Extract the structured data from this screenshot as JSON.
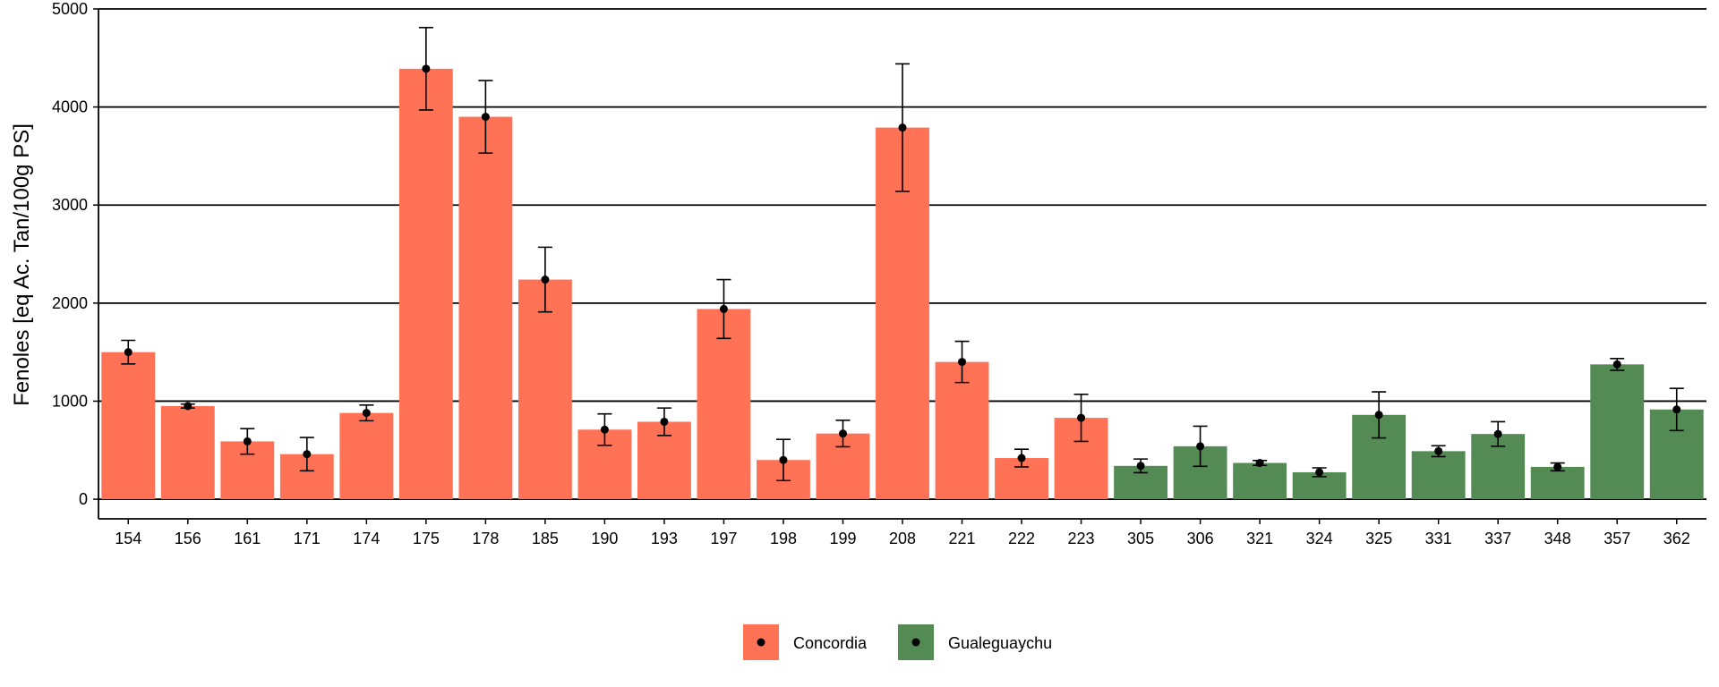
{
  "chart_data": {
    "type": "bar",
    "title": "",
    "xlabel": "",
    "ylabel": "Fenoles [eq Ac. Tan/100g PS]",
    "ylim": [
      -200,
      5000
    ],
    "yticks": [
      0,
      1000,
      2000,
      3000,
      4000,
      5000
    ],
    "grid": "horizontal major lines",
    "legend_position": "bottom",
    "error_bars": true,
    "categories": [
      "154",
      "156",
      "161",
      "171",
      "174",
      "175",
      "178",
      "185",
      "190",
      "193",
      "197",
      "198",
      "199",
      "208",
      "221",
      "222",
      "223",
      "305",
      "306",
      "321",
      "324",
      "325",
      "331",
      "337",
      "348",
      "357",
      "362"
    ],
    "values": [
      1500,
      950,
      590,
      460,
      880,
      4390,
      3900,
      2240,
      710,
      790,
      1940,
      400,
      670,
      3790,
      1400,
      420,
      830,
      340,
      540,
      370,
      275,
      860,
      490,
      665,
      330,
      1375,
      915
    ],
    "errors": [
      120,
      20,
      130,
      170,
      80,
      420,
      370,
      330,
      160,
      140,
      300,
      210,
      135,
      650,
      210,
      90,
      240,
      70,
      205,
      25,
      45,
      235,
      55,
      125,
      40,
      60,
      215
    ],
    "groups": [
      "Concordia",
      "Concordia",
      "Concordia",
      "Concordia",
      "Concordia",
      "Concordia",
      "Concordia",
      "Concordia",
      "Concordia",
      "Concordia",
      "Concordia",
      "Concordia",
      "Concordia",
      "Concordia",
      "Concordia",
      "Concordia",
      "Concordia",
      "Gualeguaychu",
      "Gualeguaychu",
      "Gualeguaychu",
      "Gualeguaychu",
      "Gualeguaychu",
      "Gualeguaychu",
      "Gualeguaychu",
      "Gualeguaychu",
      "Gualeguaychu",
      "Gualeguaychu"
    ],
    "legend": [
      {
        "name": "Concordia",
        "color": "#FF7256"
      },
      {
        "name": "Gualeguaychu",
        "color": "#548B54"
      }
    ]
  }
}
